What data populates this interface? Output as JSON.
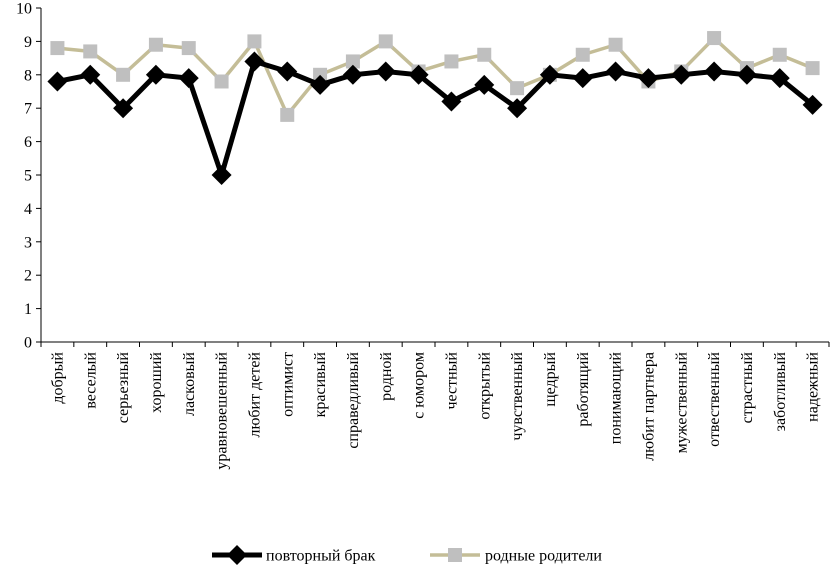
{
  "chart_data": {
    "type": "line",
    "categories": [
      "добрый",
      "веселый",
      "серьезный",
      "хороший",
      "ласковый",
      "уравновешенный",
      "любит детей",
      "оптимист",
      "красивый",
      "справедливый",
      "родной",
      "с юмором",
      "честный",
      "открытый",
      "чувственный",
      "щедрый",
      "работящий",
      "понимающий",
      "любит партнера",
      "мужественный",
      "отвественный",
      "страстный",
      "заботливый",
      "надежный"
    ],
    "series": [
      {
        "name": "повторный брак",
        "color": "#000000",
        "marker": "diamond",
        "values": [
          7.8,
          8.0,
          7.0,
          8.0,
          7.9,
          5.0,
          8.4,
          8.1,
          7.7,
          8.0,
          8.1,
          8.0,
          7.2,
          7.7,
          7.0,
          8.0,
          7.9,
          8.1,
          7.9,
          8.0,
          8.1,
          8.0,
          7.9,
          7.1
        ]
      },
      {
        "name": "родные родители",
        "color": "#c4bd97",
        "marker_color": "#bfbfbf",
        "marker": "square",
        "values": [
          8.8,
          8.7,
          8.0,
          8.9,
          8.8,
          7.8,
          9.0,
          6.8,
          8.0,
          8.4,
          9.0,
          8.1,
          8.4,
          8.6,
          7.6,
          8.0,
          8.6,
          8.9,
          7.8,
          8.1,
          9.1,
          8.2,
          8.6,
          8.2
        ]
      }
    ],
    "yticks": [
      0,
      1,
      2,
      3,
      4,
      5,
      6,
      7,
      8,
      9,
      10
    ],
    "ylim": [
      0,
      10
    ],
    "grid": false,
    "legend": "bottom"
  }
}
